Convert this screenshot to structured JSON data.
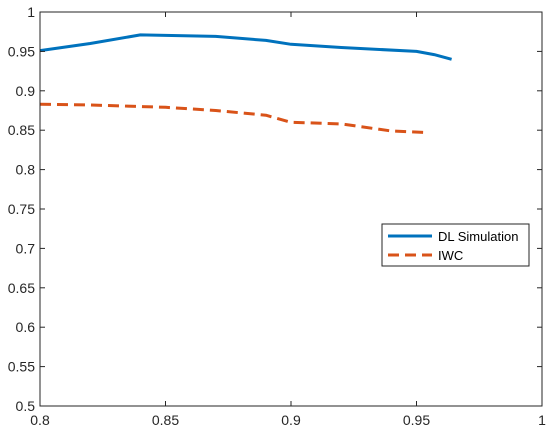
{
  "chart_data": {
    "type": "line",
    "xlim": [
      0.8,
      1.0
    ],
    "ylim": [
      0.5,
      1.0
    ],
    "xticks": [
      "0.8",
      "0.85",
      "0.9",
      "0.95",
      "1"
    ],
    "yticks": [
      "0.5",
      "0.55",
      "0.6",
      "0.65",
      "0.7",
      "0.75",
      "0.8",
      "0.85",
      "0.9",
      "0.95",
      "1"
    ],
    "grid": false,
    "legend_position": "right",
    "series": [
      {
        "name": "DL Simulation",
        "color": "#0072BD",
        "style": "solid",
        "x": [
          0.8,
          0.82,
          0.84,
          0.87,
          0.89,
          0.9,
          0.92,
          0.95,
          0.957,
          0.964
        ],
        "y": [
          0.951,
          0.96,
          0.971,
          0.969,
          0.964,
          0.959,
          0.955,
          0.95,
          0.946,
          0.94
        ]
      },
      {
        "name": "IWC",
        "color": "#D95319",
        "style": "dashed",
        "x": [
          0.8,
          0.82,
          0.85,
          0.87,
          0.89,
          0.9,
          0.92,
          0.94,
          0.955
        ],
        "y": [
          0.883,
          0.882,
          0.879,
          0.875,
          0.869,
          0.86,
          0.858,
          0.849,
          0.847
        ]
      }
    ]
  }
}
